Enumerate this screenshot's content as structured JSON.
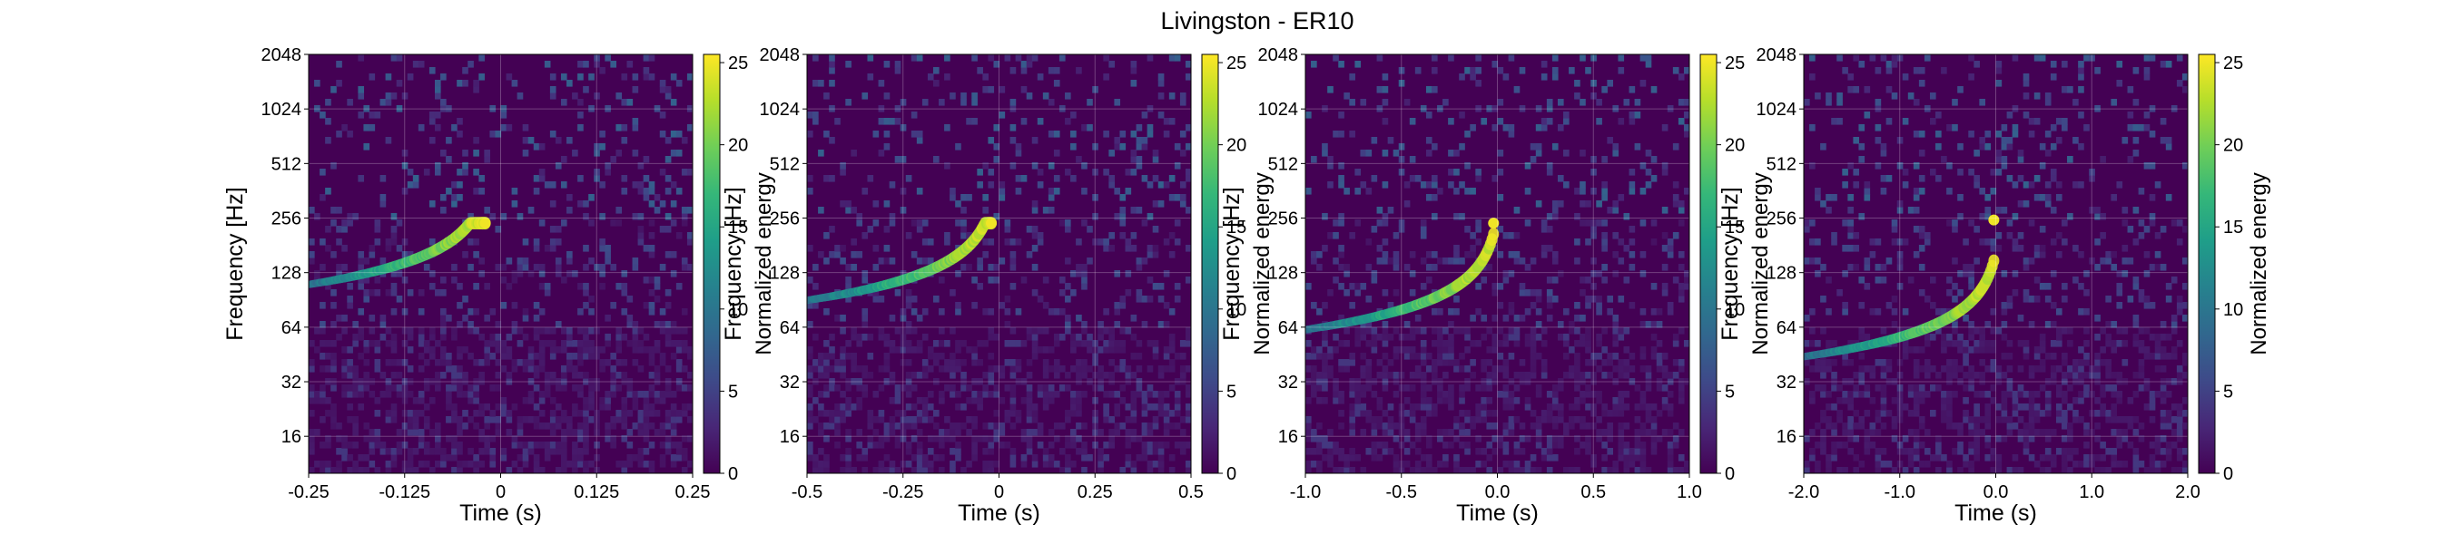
{
  "title": "Livingston - ER10",
  "colorbar": {
    "label": "Normalized energy",
    "range": [
      0,
      25.5
    ],
    "ticks": [
      "0",
      "5",
      "10",
      "15",
      "20",
      "25"
    ],
    "colormap": [
      "#440154",
      "#482777",
      "#3e4a89",
      "#31688e",
      "#26828e",
      "#1f9e89",
      "#35b779",
      "#6ece58",
      "#b5de2b",
      "#fde725"
    ]
  },
  "chart_data": [
    {
      "type": "heatmap",
      "title": "",
      "xlabel": "Time (s)",
      "ylabel": "Frequency [Hz]",
      "xlim": [
        -0.25,
        0.25
      ],
      "ylim": [
        10,
        2048
      ],
      "yscale": "log2",
      "xticks": [
        "-0.25",
        "-0.125",
        "0",
        "0.125",
        "0.25"
      ],
      "yticks": [
        "16",
        "32",
        "64",
        "128",
        "256",
        "512",
        "1024",
        "2048"
      ],
      "grid": true,
      "chirp": {
        "t_start": -0.25,
        "f_start": 110,
        "t_merge": -0.02,
        "f_merge": 240,
        "peak_energy": 25
      }
    },
    {
      "type": "heatmap",
      "title": "",
      "xlabel": "Time (s)",
      "ylabel": "Frequency [Hz]",
      "xlim": [
        -0.5,
        0.5
      ],
      "ylim": [
        10,
        2048
      ],
      "yscale": "log2",
      "xticks": [
        "-0.5",
        "-0.25",
        "0",
        "0.25",
        "0.5"
      ],
      "yticks": [
        "16",
        "32",
        "64",
        "128",
        "256",
        "512",
        "1024",
        "2048"
      ],
      "grid": true,
      "chirp": {
        "t_start": -0.5,
        "f_start": 90,
        "t_merge": -0.02,
        "f_merge": 240,
        "peak_energy": 25
      }
    },
    {
      "type": "heatmap",
      "title": "",
      "xlabel": "Time (s)",
      "ylabel": "Frequency [Hz]",
      "xlim": [
        -1.0,
        1.0
      ],
      "ylim": [
        10,
        2048
      ],
      "yscale": "log2",
      "xticks": [
        "-1.0",
        "-0.5",
        "0.0",
        "0.5",
        "1.0"
      ],
      "yticks": [
        "16",
        "32",
        "64",
        "128",
        "256",
        "512",
        "1024",
        "2048"
      ],
      "grid": true,
      "chirp": {
        "t_start": -1.0,
        "f_start": 62,
        "t_merge": -0.02,
        "f_merge": 240,
        "peak_energy": 25
      }
    },
    {
      "type": "heatmap",
      "title": "",
      "xlabel": "Time (s)",
      "ylabel": "Frequency [Hz]",
      "xlim": [
        -2.0,
        2.0
      ],
      "ylim": [
        10,
        2048
      ],
      "yscale": "log2",
      "xticks": [
        "-2.0",
        "-1.0",
        "0.0",
        "1.0",
        "2.0"
      ],
      "yticks": [
        "16",
        "32",
        "64",
        "128",
        "256",
        "512",
        "1024",
        "2048"
      ],
      "grid": true,
      "chirp": {
        "t_start": -2.0,
        "f_start": 44,
        "t_merge": -0.02,
        "f_merge": 250,
        "peak_energy": 25
      }
    }
  ]
}
